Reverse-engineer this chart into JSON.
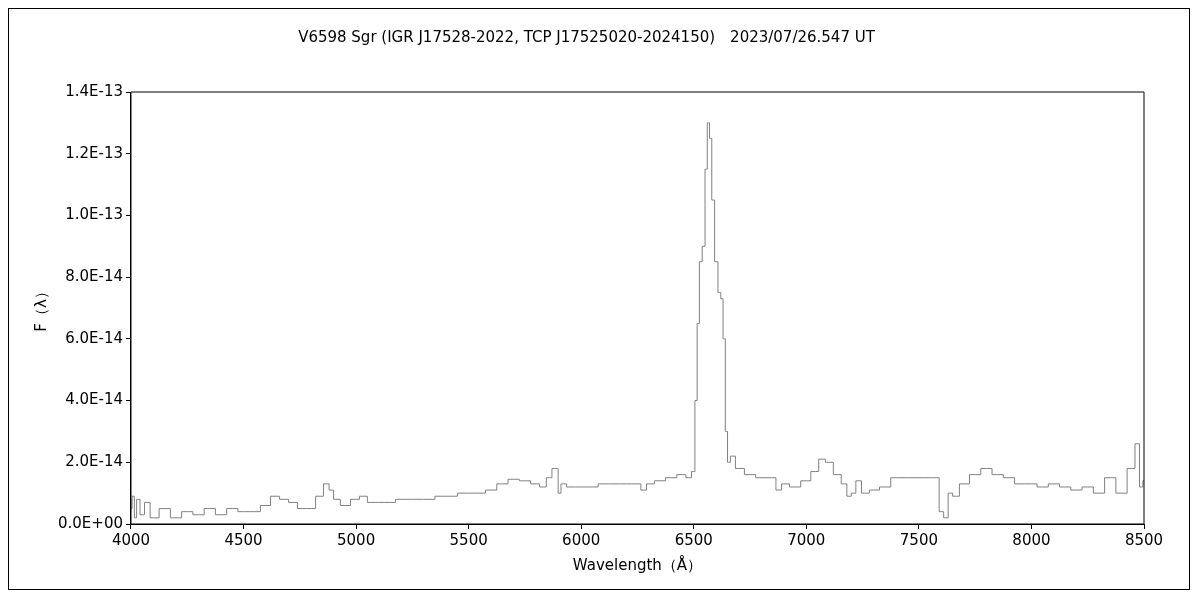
{
  "chart_data": {
    "type": "step",
    "title": "V6598 Sgr (IGR J17528-2022, TCP J17525020-2024150)　2023/07/26.547 UT",
    "xlabel": "Wavelength（Å）",
    "ylabel": "F（λ）",
    "x": [
      4000,
      4010,
      4020,
      4030,
      4050,
      4070,
      4100,
      4150,
      4200,
      4250,
      4300,
      4350,
      4400,
      4450,
      4500,
      4550,
      4600,
      4640,
      4680,
      4720,
      4760,
      4800,
      4840,
      4870,
      4890,
      4910,
      4950,
      5000,
      5030,
      5070,
      5100,
      5150,
      5200,
      5300,
      5400,
      5500,
      5550,
      5600,
      5650,
      5700,
      5750,
      5800,
      5830,
      5860,
      5880,
      5895,
      5900,
      5920,
      5950,
      6000,
      6050,
      6100,
      6150,
      6200,
      6250,
      6280,
      6300,
      6350,
      6400,
      6450,
      6480,
      6500,
      6510,
      6520,
      6530,
      6545,
      6555,
      6565,
      6575,
      6585,
      6600,
      6615,
      6625,
      6635,
      6645,
      6655,
      6670,
      6700,
      6750,
      6800,
      6850,
      6880,
      6900,
      6950,
      7000,
      7040,
      7070,
      7100,
      7140,
      7170,
      7190,
      7210,
      7230,
      7260,
      7300,
      7350,
      7400,
      7450,
      7500,
      7550,
      7580,
      7600,
      7620,
      7640,
      7660,
      7700,
      7750,
      7800,
      7850,
      7900,
      7950,
      8000,
      8050,
      8100,
      8150,
      8200,
      8250,
      8300,
      8350,
      8400,
      8450,
      8470,
      8490,
      8500
    ],
    "series": [
      {
        "color": "#808080",
        "values": [
          5e-15,
          9e-15,
          2e-15,
          8e-15,
          3e-15,
          7e-15,
          2e-15,
          5e-15,
          2e-15,
          4e-15,
          3e-15,
          5e-15,
          3e-15,
          5e-15,
          4e-15,
          4e-15,
          6e-15,
          9e-15,
          8e-15,
          7e-15,
          5e-15,
          5e-15,
          9e-15,
          1.3e-14,
          1.1e-14,
          8e-15,
          6e-15,
          8e-15,
          9e-15,
          7e-15,
          7e-15,
          7e-15,
          8e-15,
          8e-15,
          9e-15,
          1e-14,
          1e-14,
          1.1e-14,
          1.3e-14,
          1.45e-14,
          1.4e-14,
          1.3e-14,
          1.2e-14,
          1.5e-14,
          1.8e-14,
          1.8e-14,
          1e-14,
          1.3e-14,
          1.2e-14,
          1.2e-14,
          1.2e-14,
          1.3e-14,
          1.3e-14,
          1.3e-14,
          1.3e-14,
          1.1e-14,
          1.3e-14,
          1.4e-14,
          1.5e-14,
          1.6e-14,
          1.5e-14,
          1.7e-14,
          4e-14,
          6.5e-14,
          8.5e-14,
          9e-14,
          1.15e-13,
          1.3e-13,
          1.25e-13,
          1.05e-13,
          8.5e-14,
          7.5e-14,
          7.3e-14,
          6e-14,
          3e-14,
          2e-14,
          2.2e-14,
          1.8e-14,
          1.6e-14,
          1.5e-14,
          1.5e-14,
          1.1e-14,
          1.3e-14,
          1.2e-14,
          1.4e-14,
          1.7e-14,
          2.1e-14,
          2e-14,
          1.6e-14,
          1.3e-14,
          9e-15,
          1e-14,
          1.4e-14,
          1e-14,
          1.1e-14,
          1.2e-14,
          1.5e-14,
          1.5e-14,
          1.5e-14,
          1.5e-14,
          1.5e-14,
          4e-15,
          2e-15,
          1e-14,
          9e-15,
          1.3e-14,
          1.6e-14,
          1.8e-14,
          1.6e-14,
          1.5e-14,
          1.3e-14,
          1.3e-14,
          1.2e-14,
          1.3e-14,
          1.2e-14,
          1.1e-14,
          1.2e-14,
          1e-14,
          1.5e-14,
          1e-14,
          1.8e-14,
          2.6e-14,
          1.2e-14,
          1.4e-14
        ]
      }
    ],
    "xlim": [
      4000,
      8500
    ],
    "xticks": [
      4000,
      4500,
      5000,
      5500,
      6000,
      6500,
      7000,
      7500,
      8000,
      8500
    ],
    "ylim": [
      0,
      1.4e-13
    ],
    "yticks": [
      {
        "value": 0,
        "label": "0.0E+00"
      },
      {
        "value": 2e-14,
        "label": "2.0E-14"
      },
      {
        "value": 4e-14,
        "label": "4.0E-14"
      },
      {
        "value": 6e-14,
        "label": "6.0E-14"
      },
      {
        "value": 8e-14,
        "label": "8.0E-14"
      },
      {
        "value": 1e-13,
        "label": "1.0E-13"
      },
      {
        "value": 1.2e-13,
        "label": "1.2E-13"
      },
      {
        "value": 1.4e-13,
        "label": "1.4E-13"
      }
    ],
    "grid": false,
    "legend": false
  }
}
